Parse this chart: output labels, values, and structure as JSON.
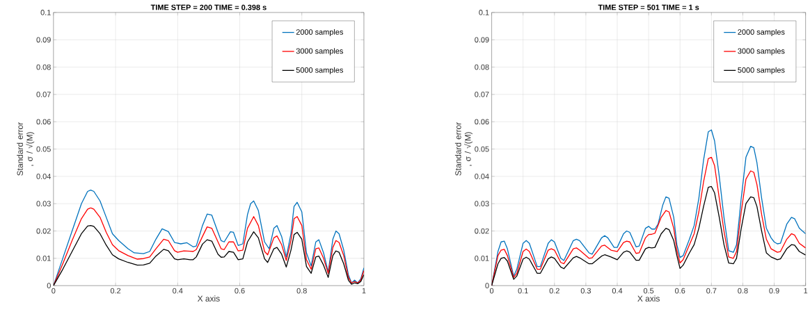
{
  "chart_data": [
    {
      "type": "line",
      "title": "TIME STEP = 200 TIME = 0.398 s",
      "xlabel": "X axis",
      "ylabel": "Standard error , σ / √(M)",
      "xlim": [
        0,
        1
      ],
      "ylim": [
        0,
        0.1
      ],
      "xticks": [
        0,
        0.2,
        0.4,
        0.6,
        0.8,
        1
      ],
      "yticks": [
        0,
        0.01,
        0.02,
        0.03,
        0.04,
        0.05,
        0.06,
        0.07,
        0.08,
        0.09,
        0.1
      ],
      "grid": true,
      "legend": "top right",
      "series": [
        {
          "name": "2000 samples",
          "color": "#0072bd",
          "x": [
            0,
            0.03,
            0.06,
            0.09,
            0.11,
            0.12,
            0.13,
            0.15,
            0.17,
            0.19,
            0.21,
            0.24,
            0.26,
            0.29,
            0.31,
            0.33,
            0.35,
            0.37,
            0.39,
            0.41,
            0.43,
            0.45,
            0.46,
            0.48,
            0.495,
            0.51,
            0.53,
            0.54,
            0.55,
            0.57,
            0.58,
            0.595,
            0.61,
            0.625,
            0.635,
            0.645,
            0.66,
            0.68,
            0.695,
            0.71,
            0.72,
            0.735,
            0.75,
            0.765,
            0.775,
            0.785,
            0.8,
            0.815,
            0.83,
            0.845,
            0.855,
            0.87,
            0.885,
            0.9,
            0.91,
            0.92,
            0.935,
            0.95,
            0.96,
            0.97,
            0.98,
            0.99,
            1.0
          ],
          "values": [
            0,
            0.01,
            0.02,
            0.03,
            0.0345,
            0.035,
            0.0345,
            0.031,
            0.025,
            0.019,
            0.0165,
            0.0135,
            0.012,
            0.0117,
            0.0125,
            0.017,
            0.0208,
            0.0198,
            0.0158,
            0.0153,
            0.0157,
            0.0142,
            0.0145,
            0.022,
            0.0262,
            0.0258,
            0.0195,
            0.0165,
            0.016,
            0.0197,
            0.0195,
            0.0147,
            0.0153,
            0.026,
            0.03,
            0.031,
            0.0275,
            0.016,
            0.0135,
            0.021,
            0.022,
            0.018,
            0.0105,
            0.019,
            0.029,
            0.0305,
            0.027,
            0.012,
            0.0072,
            0.016,
            0.0168,
            0.012,
            0.005,
            0.017,
            0.02,
            0.019,
            0.013,
            0.004,
            0.001,
            0.002,
            0.001,
            0.0025,
            0.0065
          ]
        },
        {
          "name": "3000 samples",
          "color": "#ff0000",
          "x": [
            0,
            0.03,
            0.06,
            0.09,
            0.11,
            0.12,
            0.13,
            0.15,
            0.17,
            0.19,
            0.21,
            0.24,
            0.27,
            0.29,
            0.31,
            0.33,
            0.355,
            0.37,
            0.39,
            0.4,
            0.42,
            0.44,
            0.45,
            0.46,
            0.48,
            0.495,
            0.51,
            0.53,
            0.54,
            0.55,
            0.565,
            0.58,
            0.595,
            0.61,
            0.625,
            0.645,
            0.66,
            0.68,
            0.69,
            0.71,
            0.72,
            0.735,
            0.75,
            0.765,
            0.775,
            0.785,
            0.8,
            0.815,
            0.83,
            0.845,
            0.855,
            0.87,
            0.885,
            0.9,
            0.91,
            0.92,
            0.935,
            0.95,
            0.96,
            0.97,
            0.98,
            0.99,
            1.0
          ],
          "values": [
            0,
            0.008,
            0.0165,
            0.0245,
            0.028,
            0.0285,
            0.028,
            0.025,
            0.0195,
            0.015,
            0.0128,
            0.011,
            0.0097,
            0.0099,
            0.0105,
            0.0135,
            0.017,
            0.0165,
            0.0128,
            0.0122,
            0.0127,
            0.0126,
            0.0125,
            0.0132,
            0.018,
            0.0215,
            0.021,
            0.016,
            0.0135,
            0.0132,
            0.016,
            0.016,
            0.0127,
            0.013,
            0.021,
            0.0253,
            0.022,
            0.0125,
            0.0113,
            0.0175,
            0.0182,
            0.015,
            0.0092,
            0.0165,
            0.0245,
            0.0253,
            0.022,
            0.0095,
            0.006,
            0.0135,
            0.0138,
            0.01,
            0.0045,
            0.014,
            0.0165,
            0.0158,
            0.011,
            0.003,
            0.001,
            0.0015,
            0.001,
            0.002,
            0.0055
          ]
        },
        {
          "name": "5000 samples",
          "color": "#000000",
          "x": [
            0,
            0.03,
            0.06,
            0.09,
            0.11,
            0.12,
            0.13,
            0.15,
            0.17,
            0.19,
            0.21,
            0.24,
            0.27,
            0.29,
            0.31,
            0.33,
            0.355,
            0.37,
            0.39,
            0.4,
            0.42,
            0.44,
            0.45,
            0.46,
            0.48,
            0.495,
            0.51,
            0.53,
            0.54,
            0.55,
            0.565,
            0.58,
            0.595,
            0.61,
            0.625,
            0.645,
            0.66,
            0.68,
            0.69,
            0.71,
            0.72,
            0.735,
            0.75,
            0.765,
            0.775,
            0.785,
            0.8,
            0.815,
            0.83,
            0.845,
            0.855,
            0.87,
            0.885,
            0.9,
            0.91,
            0.92,
            0.935,
            0.95,
            0.96,
            0.97,
            0.98,
            0.99,
            1.0
          ],
          "values": [
            0,
            0.006,
            0.0125,
            0.019,
            0.0218,
            0.022,
            0.0217,
            0.019,
            0.0148,
            0.0113,
            0.0098,
            0.0085,
            0.0075,
            0.0076,
            0.0082,
            0.0108,
            0.0133,
            0.0128,
            0.0098,
            0.0095,
            0.0098,
            0.0095,
            0.0095,
            0.0105,
            0.0152,
            0.0168,
            0.0163,
            0.0115,
            0.0104,
            0.0105,
            0.0125,
            0.0122,
            0.0095,
            0.0098,
            0.016,
            0.0197,
            0.0175,
            0.0098,
            0.0085,
            0.0135,
            0.014,
            0.0115,
            0.0068,
            0.013,
            0.0187,
            0.0195,
            0.017,
            0.007,
            0.0045,
            0.0105,
            0.0108,
            0.0075,
            0.003,
            0.011,
            0.0127,
            0.0122,
            0.008,
            0.002,
            0.0005,
            0.001,
            0.0007,
            0.0015,
            0.004
          ]
        }
      ]
    },
    {
      "type": "line",
      "title": "TIME STEP = 501 TIME = 1 s",
      "xlabel": "X axis",
      "ylabel": "Standard error , σ / √(M)",
      "xlim": [
        0,
        1
      ],
      "ylim": [
        0,
        0.1
      ],
      "xticks": [
        0,
        0.1,
        0.2,
        0.3,
        0.4,
        0.5,
        0.6,
        0.7,
        0.8,
        0.9,
        1
      ],
      "yticks": [
        0,
        0.01,
        0.02,
        0.03,
        0.04,
        0.05,
        0.06,
        0.07,
        0.08,
        0.09,
        0.1
      ],
      "grid": true,
      "legend": "top right",
      "series": [
        {
          "name": "2000 samples",
          "color": "#0072bd",
          "x": [
            0,
            0.02,
            0.03,
            0.04,
            0.05,
            0.07,
            0.08,
            0.1,
            0.11,
            0.12,
            0.145,
            0.155,
            0.18,
            0.19,
            0.2,
            0.22,
            0.23,
            0.26,
            0.27,
            0.28,
            0.31,
            0.32,
            0.35,
            0.36,
            0.37,
            0.39,
            0.4,
            0.42,
            0.43,
            0.44,
            0.46,
            0.47,
            0.49,
            0.5,
            0.51,
            0.52,
            0.53,
            0.545,
            0.555,
            0.565,
            0.58,
            0.59,
            0.6,
            0.61,
            0.63,
            0.645,
            0.66,
            0.675,
            0.69,
            0.7,
            0.71,
            0.725,
            0.74,
            0.755,
            0.77,
            0.78,
            0.795,
            0.81,
            0.825,
            0.835,
            0.845,
            0.86,
            0.875,
            0.89,
            0.9,
            0.91,
            0.92,
            0.94,
            0.955,
            0.965,
            0.98,
            1.0
          ],
          "values": [
            0,
            0.0125,
            0.016,
            0.0163,
            0.0135,
            0.0035,
            0.006,
            0.0155,
            0.0165,
            0.0155,
            0.007,
            0.007,
            0.0155,
            0.0168,
            0.016,
            0.01,
            0.0092,
            0.0165,
            0.017,
            0.0165,
            0.012,
            0.0115,
            0.0175,
            0.0183,
            0.0175,
            0.014,
            0.014,
            0.019,
            0.02,
            0.0195,
            0.0142,
            0.0145,
            0.021,
            0.0217,
            0.0207,
            0.0207,
            0.0225,
            0.0295,
            0.0325,
            0.032,
            0.025,
            0.015,
            0.0103,
            0.011,
            0.017,
            0.022,
            0.032,
            0.046,
            0.0563,
            0.057,
            0.053,
            0.04,
            0.025,
            0.0128,
            0.0122,
            0.015,
            0.032,
            0.047,
            0.051,
            0.0505,
            0.045,
            0.032,
            0.021,
            0.0175,
            0.016,
            0.0153,
            0.0155,
            0.0225,
            0.025,
            0.0245,
            0.021,
            0.019
          ]
        },
        {
          "name": "3000 samples",
          "color": "#ff0000",
          "x": [
            0,
            0.02,
            0.03,
            0.04,
            0.05,
            0.07,
            0.08,
            0.1,
            0.11,
            0.12,
            0.145,
            0.155,
            0.18,
            0.19,
            0.2,
            0.22,
            0.23,
            0.26,
            0.27,
            0.28,
            0.31,
            0.32,
            0.35,
            0.36,
            0.38,
            0.4,
            0.42,
            0.43,
            0.44,
            0.46,
            0.47,
            0.49,
            0.5,
            0.51,
            0.52,
            0.54,
            0.555,
            0.565,
            0.58,
            0.59,
            0.6,
            0.61,
            0.63,
            0.645,
            0.66,
            0.675,
            0.69,
            0.7,
            0.71,
            0.725,
            0.74,
            0.755,
            0.77,
            0.78,
            0.795,
            0.81,
            0.825,
            0.835,
            0.845,
            0.86,
            0.875,
            0.89,
            0.91,
            0.92,
            0.94,
            0.955,
            0.965,
            0.98,
            1.0
          ],
          "values": [
            0,
            0.011,
            0.013,
            0.0133,
            0.011,
            0.003,
            0.0045,
            0.0125,
            0.0134,
            0.0125,
            0.006,
            0.006,
            0.013,
            0.0135,
            0.013,
            0.0085,
            0.008,
            0.0135,
            0.0138,
            0.013,
            0.01,
            0.0102,
            0.0145,
            0.0148,
            0.013,
            0.0125,
            0.0158,
            0.0163,
            0.016,
            0.0118,
            0.012,
            0.0175,
            0.0187,
            0.0188,
            0.0192,
            0.025,
            0.0275,
            0.027,
            0.021,
            0.013,
            0.0083,
            0.0095,
            0.015,
            0.019,
            0.027,
            0.038,
            0.0465,
            0.047,
            0.044,
            0.032,
            0.02,
            0.0105,
            0.01,
            0.0125,
            0.027,
            0.039,
            0.042,
            0.0415,
            0.037,
            0.026,
            0.017,
            0.0135,
            0.0122,
            0.0125,
            0.017,
            0.019,
            0.0185,
            0.0155,
            0.0138
          ]
        },
        {
          "name": "5000 samples",
          "color": "#000000",
          "x": [
            0,
            0.02,
            0.03,
            0.04,
            0.05,
            0.07,
            0.08,
            0.1,
            0.11,
            0.12,
            0.145,
            0.155,
            0.18,
            0.19,
            0.2,
            0.22,
            0.23,
            0.26,
            0.27,
            0.28,
            0.31,
            0.32,
            0.35,
            0.36,
            0.38,
            0.4,
            0.42,
            0.43,
            0.44,
            0.46,
            0.47,
            0.49,
            0.5,
            0.51,
            0.52,
            0.54,
            0.555,
            0.565,
            0.58,
            0.59,
            0.6,
            0.61,
            0.63,
            0.645,
            0.66,
            0.675,
            0.69,
            0.7,
            0.71,
            0.725,
            0.74,
            0.755,
            0.77,
            0.78,
            0.795,
            0.81,
            0.825,
            0.835,
            0.845,
            0.86,
            0.875,
            0.89,
            0.91,
            0.92,
            0.94,
            0.955,
            0.965,
            0.98,
            1.0
          ],
          "values": [
            0,
            0.008,
            0.01,
            0.0103,
            0.009,
            0.0023,
            0.0035,
            0.0097,
            0.0104,
            0.0097,
            0.0045,
            0.0045,
            0.0098,
            0.0105,
            0.01,
            0.0068,
            0.0062,
            0.0102,
            0.0107,
            0.0102,
            0.008,
            0.008,
            0.0108,
            0.0113,
            0.0105,
            0.0095,
            0.0122,
            0.0127,
            0.0123,
            0.0093,
            0.0093,
            0.0135,
            0.014,
            0.0138,
            0.014,
            0.019,
            0.021,
            0.0205,
            0.0165,
            0.011,
            0.0063,
            0.0075,
            0.012,
            0.015,
            0.021,
            0.029,
            0.036,
            0.0363,
            0.034,
            0.025,
            0.015,
            0.0083,
            0.008,
            0.01,
            0.021,
            0.03,
            0.0325,
            0.0322,
            0.029,
            0.02,
            0.012,
            0.0105,
            0.0095,
            0.0098,
            0.0135,
            0.015,
            0.0148,
            0.0125,
            0.0112
          ]
        }
      ]
    }
  ]
}
